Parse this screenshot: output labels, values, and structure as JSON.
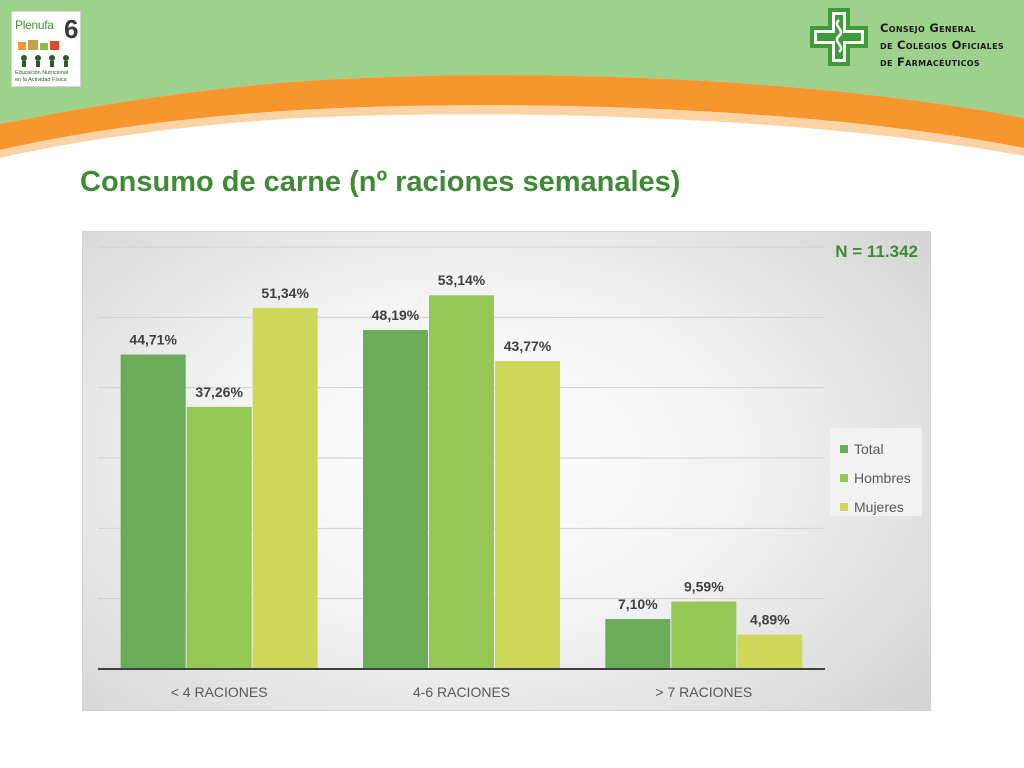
{
  "header": {
    "logo_left_name": "Plenufa",
    "logo_left_number": "6",
    "logo_left_tagline_1": "Educación Nutricional",
    "logo_left_tagline_2": "en la Actividad Física",
    "org_line_1": "Consejo General",
    "org_line_2": "de Colegios Oficiales",
    "org_line_3": "de Farmacéuticos"
  },
  "colors": {
    "header_green": "#9dd18c",
    "header_orange": "#f7962d",
    "title_green": "#3f8a36",
    "series_total": "#6aac57",
    "series_hombres": "#95c754",
    "series_mujeres": "#cdd85b"
  },
  "slide": {
    "title": "Consumo de carne (nº raciones semanales)"
  },
  "chart_data": {
    "type": "bar",
    "title": "",
    "annotation": "N = 11.342",
    "xlabel": "",
    "ylabel": "",
    "ylim": [
      0,
      60
    ],
    "grid": true,
    "legend_position": "right",
    "categories": [
      "< 4 RACIONES",
      "4-6 RACIONES",
      "> 7 RACIONES"
    ],
    "series": [
      {
        "name": "Total",
        "values": [
          44.71,
          48.19,
          7.1
        ],
        "labels": [
          "44,71%",
          "48,19%",
          "7,10%"
        ]
      },
      {
        "name": "Hombres",
        "values": [
          37.26,
          53.14,
          9.59
        ],
        "labels": [
          "37,26%",
          "53,14%",
          "9,59%"
        ]
      },
      {
        "name": "Mujeres",
        "values": [
          51.34,
          43.77,
          4.89
        ],
        "labels": [
          "51,34%",
          "43,77%",
          "4,89%"
        ]
      }
    ]
  }
}
